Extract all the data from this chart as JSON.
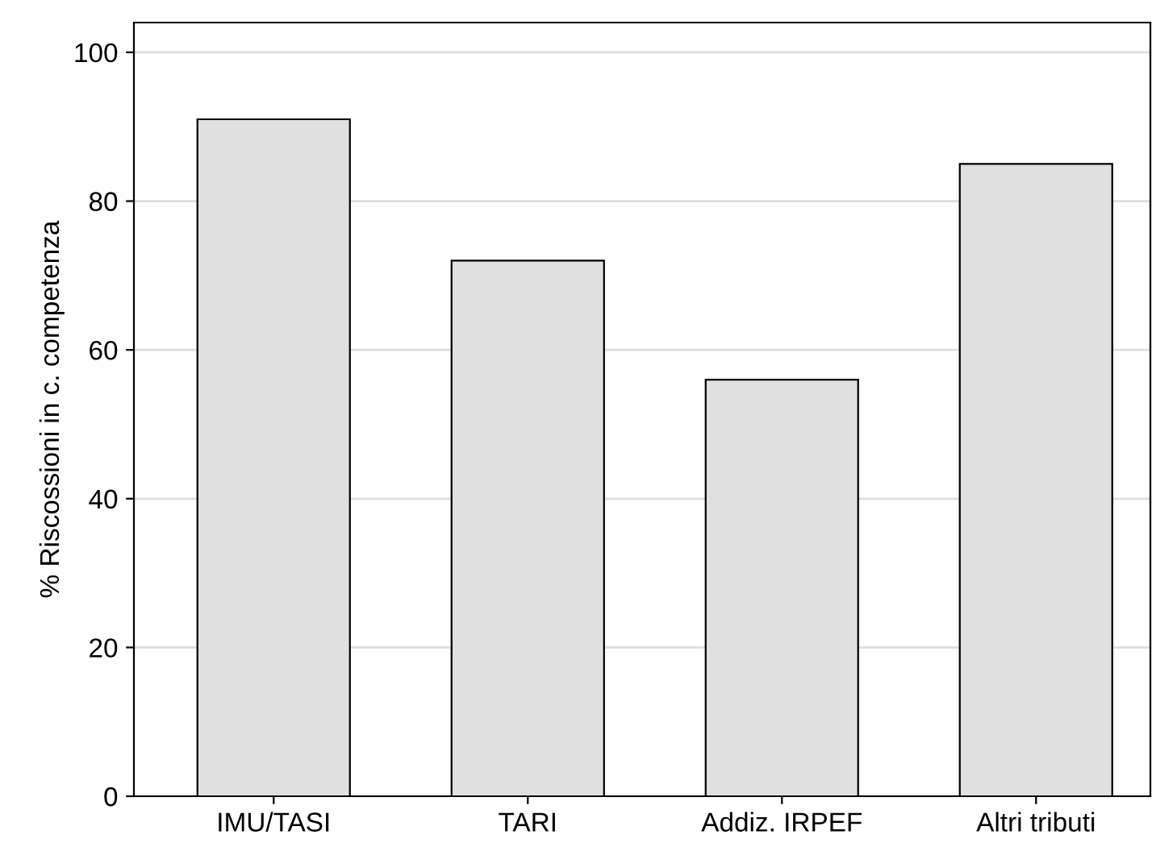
{
  "chart_data": {
    "type": "bar",
    "ylabel": "% Riscossioni in c. competenza",
    "categories": [
      "IMU/TASI",
      "TARI",
      "Addiz. IRPEF",
      "Altri tributi"
    ],
    "values": [
      91,
      72,
      56,
      85
    ],
    "color": "#e0e0e0",
    "ylim": [
      0,
      104
    ],
    "yticks": [
      0,
      20,
      40,
      60,
      80,
      100
    ],
    "grid": "y"
  }
}
